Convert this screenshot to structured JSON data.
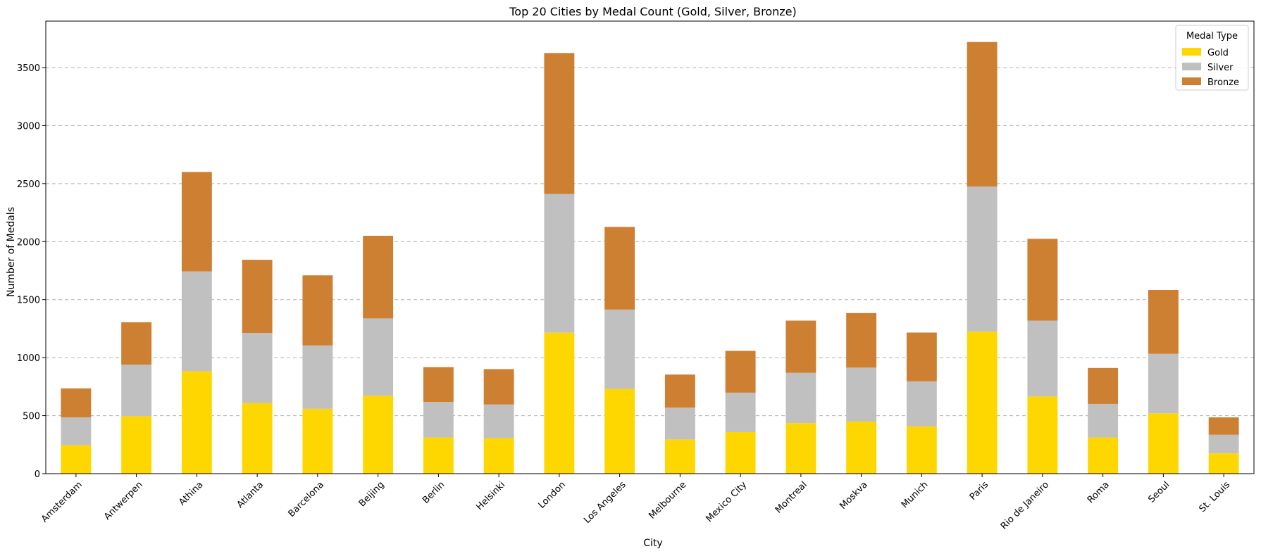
{
  "chart_data": {
    "type": "bar",
    "stacked": true,
    "title": "Top 20 Cities by Medal Count (Gold, Silver, Bronze)",
    "xlabel": "City",
    "ylabel": "Number of Medals",
    "ylim": [
      0,
      3900
    ],
    "yticks": [
      0,
      500,
      1000,
      1500,
      2000,
      2500,
      3000,
      3500
    ],
    "grid": "y-dashed",
    "legend": {
      "title": "Medal Type",
      "placement": "top-right"
    },
    "categories": [
      "Amsterdam",
      "Antwerpen",
      "Athina",
      "Atlanta",
      "Barcelona",
      "Beijing",
      "Berlin",
      "Helsinki",
      "London",
      "Los Angeles",
      "Melbourne",
      "Mexico City",
      "Montreal",
      "Moskva",
      "Munich",
      "Paris",
      "Rio de Janeiro",
      "Roma",
      "Seoul",
      "St. Louis"
    ],
    "series": [
      {
        "name": "Gold",
        "color": "#FFD700",
        "values": [
          245,
          495,
          883,
          608,
          559,
          671,
          312,
          306,
          1215,
          730,
          295,
          358,
          436,
          449,
          407,
          1223,
          665,
          312,
          520,
          175
        ]
      },
      {
        "name": "Silver",
        "color": "#C0C0C0",
        "values": [
          240,
          445,
          860,
          605,
          546,
          667,
          306,
          290,
          1195,
          684,
          274,
          340,
          433,
          465,
          389,
          1252,
          654,
          289,
          513,
          160
        ]
      },
      {
        "name": "Bronze",
        "color": "#CD7F32",
        "values": [
          250,
          365,
          857,
          630,
          604,
          712,
          300,
          305,
          1215,
          712,
          285,
          360,
          450,
          470,
          420,
          1245,
          705,
          310,
          550,
          150
        ]
      }
    ]
  }
}
